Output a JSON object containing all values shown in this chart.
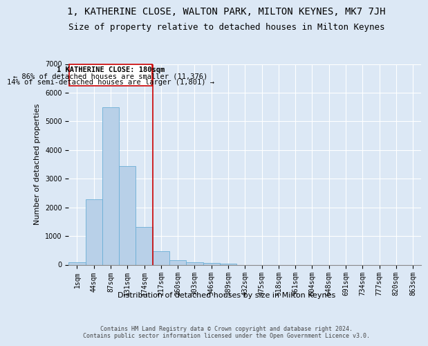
{
  "title": "1, KATHERINE CLOSE, WALTON PARK, MILTON KEYNES, MK7 7JH",
  "subtitle": "Size of property relative to detached houses in Milton Keynes",
  "xlabel": "Distribution of detached houses by size in Milton Keynes",
  "ylabel": "Number of detached properties",
  "footer_line1": "Contains HM Land Registry data © Crown copyright and database right 2024.",
  "footer_line2": "Contains public sector information licensed under the Open Government Licence v3.0.",
  "bar_labels": [
    "1sqm",
    "44sqm",
    "87sqm",
    "131sqm",
    "174sqm",
    "217sqm",
    "260sqm",
    "303sqm",
    "346sqm",
    "389sqm",
    "432sqm",
    "475sqm",
    "518sqm",
    "561sqm",
    "604sqm",
    "648sqm",
    "691sqm",
    "734sqm",
    "777sqm",
    "820sqm",
    "863sqm"
  ],
  "bar_values": [
    80,
    2280,
    5480,
    3430,
    1310,
    470,
    165,
    90,
    50,
    30,
    0,
    0,
    0,
    0,
    0,
    0,
    0,
    0,
    0,
    0,
    0
  ],
  "bar_color": "#b8d0e8",
  "bar_edge_color": "#6aaed6",
  "ylim": [
    0,
    7000
  ],
  "yticks": [
    0,
    1000,
    2000,
    3000,
    4000,
    5000,
    6000,
    7000
  ],
  "vline_color": "#cc0000",
  "vline_x": 4.5,
  "annotation_title": "1 KATHERINE CLOSE: 180sqm",
  "annotation_line2": "← 86% of detached houses are smaller (11,376)",
  "annotation_line3": "14% of semi-detached houses are larger (1,801) →",
  "annotation_box_color": "#cc0000",
  "background_color": "#dce8f5",
  "grid_color": "#ffffff",
  "title_fontsize": 10,
  "subtitle_fontsize": 9,
  "label_fontsize": 8,
  "tick_fontsize": 7,
  "annotation_fontsize": 7.5,
  "footer_fontsize": 6
}
